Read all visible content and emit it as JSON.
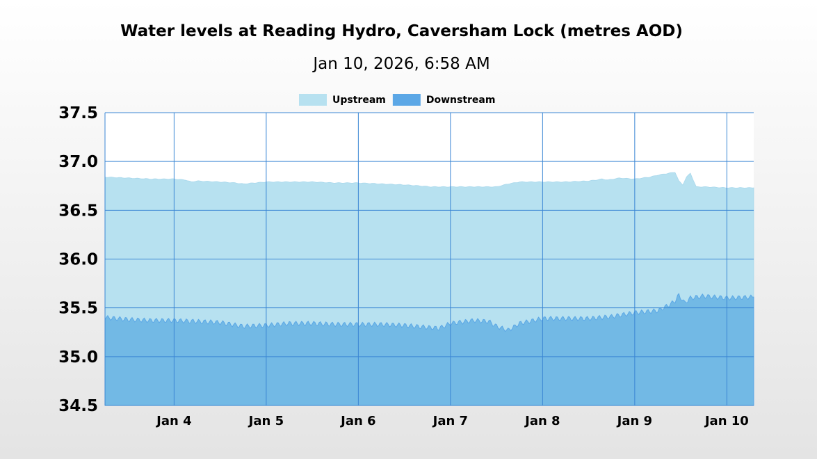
{
  "chart_data": {
    "type": "area",
    "title": "Water levels at Reading Hydro, Caversham Lock (metres AOD)",
    "subtitle": "Jan 10, 2026, 6:58 AM",
    "xlabel": "",
    "ylabel": "",
    "x_range": [
      "2026-01-03T06:00",
      "2026-01-10T07:00"
    ],
    "ylim": [
      34.5,
      37.5
    ],
    "y_ticks": [
      "37.5",
      "37.0",
      "36.5",
      "36.0",
      "35.5",
      "35.0",
      "34.5"
    ],
    "x_ticks": [
      {
        "label": "Jan 4",
        "date": "2026-01-04"
      },
      {
        "label": "Jan 5",
        "date": "2026-01-05"
      },
      {
        "label": "Jan 6",
        "date": "2026-01-06"
      },
      {
        "label": "Jan 7",
        "date": "2026-01-07"
      },
      {
        "label": "Jan 8",
        "date": "2026-01-08"
      },
      {
        "label": "Jan 9",
        "date": "2026-01-09"
      },
      {
        "label": "Jan 10",
        "date": "2026-01-10"
      }
    ],
    "grid": true,
    "legend": "top-center",
    "series": [
      {
        "name": "Upstream",
        "color": "#b7e1f0",
        "points": [
          [
            "2026-01-03T06:00",
            36.84
          ],
          [
            "2026-01-03T12:00",
            36.83
          ],
          [
            "2026-01-03T18:00",
            36.82
          ],
          [
            "2026-01-04T00:00",
            36.82
          ],
          [
            "2026-01-04T03:00",
            36.81
          ],
          [
            "2026-01-04T04:30",
            36.79
          ],
          [
            "2026-01-04T06:00",
            36.8
          ],
          [
            "2026-01-04T12:00",
            36.79
          ],
          [
            "2026-01-04T16:00",
            36.78
          ],
          [
            "2026-01-04T18:00",
            36.77
          ],
          [
            "2026-01-04T21:00",
            36.78
          ],
          [
            "2026-01-05T00:00",
            36.79
          ],
          [
            "2026-01-05T06:00",
            36.79
          ],
          [
            "2026-01-05T12:00",
            36.79
          ],
          [
            "2026-01-05T18:00",
            36.78
          ],
          [
            "2026-01-06T00:00",
            36.78
          ],
          [
            "2026-01-06T06:00",
            36.77
          ],
          [
            "2026-01-06T12:00",
            36.76
          ],
          [
            "2026-01-06T16:00",
            36.75
          ],
          [
            "2026-01-06T19:00",
            36.74
          ],
          [
            "2026-01-07T00:00",
            36.74
          ],
          [
            "2026-01-07T06:00",
            36.74
          ],
          [
            "2026-01-07T12:00",
            36.74
          ],
          [
            "2026-01-07T15:00",
            36.77
          ],
          [
            "2026-01-07T18:00",
            36.79
          ],
          [
            "2026-01-08T00:00",
            36.79
          ],
          [
            "2026-01-08T06:00",
            36.79
          ],
          [
            "2026-01-08T12:00",
            36.8
          ],
          [
            "2026-01-08T14:00",
            36.81
          ],
          [
            "2026-01-08T15:30",
            36.82
          ],
          [
            "2026-01-08T17:00",
            36.81
          ],
          [
            "2026-01-08T20:00",
            36.83
          ],
          [
            "2026-01-09T00:00",
            36.82
          ],
          [
            "2026-01-09T04:00",
            36.84
          ],
          [
            "2026-01-09T06:00",
            36.86
          ],
          [
            "2026-01-09T09:00",
            36.88
          ],
          [
            "2026-01-09T10:30",
            36.89
          ],
          [
            "2026-01-09T11:30",
            36.8
          ],
          [
            "2026-01-09T12:30",
            36.76
          ],
          [
            "2026-01-09T13:30",
            36.84
          ],
          [
            "2026-01-09T14:30",
            36.88
          ],
          [
            "2026-01-09T16:00",
            36.74
          ],
          [
            "2026-01-09T18:00",
            36.74
          ],
          [
            "2026-01-10T00:00",
            36.73
          ],
          [
            "2026-01-10T07:00",
            36.73
          ]
        ]
      },
      {
        "name": "Downstream",
        "color": "#5ba7e6",
        "points": [
          [
            "2026-01-03T06:00",
            35.4
          ],
          [
            "2026-01-03T12:00",
            35.38
          ],
          [
            "2026-01-03T18:00",
            35.37
          ],
          [
            "2026-01-04T00:00",
            35.37
          ],
          [
            "2026-01-04T06:00",
            35.36
          ],
          [
            "2026-01-04T12:00",
            35.35
          ],
          [
            "2026-01-04T18:00",
            35.31
          ],
          [
            "2026-01-05T00:00",
            35.32
          ],
          [
            "2026-01-05T06:00",
            35.34
          ],
          [
            "2026-01-05T12:00",
            35.34
          ],
          [
            "2026-01-05T18:00",
            35.33
          ],
          [
            "2026-01-06T00:00",
            35.33
          ],
          [
            "2026-01-06T06:00",
            35.33
          ],
          [
            "2026-01-06T12:00",
            35.32
          ],
          [
            "2026-01-06T18:00",
            35.3
          ],
          [
            "2026-01-06T21:00",
            35.29
          ],
          [
            "2026-01-07T00:00",
            35.34
          ],
          [
            "2026-01-07T06:00",
            35.37
          ],
          [
            "2026-01-07T10:00",
            35.36
          ],
          [
            "2026-01-07T12:00",
            35.31
          ],
          [
            "2026-01-07T15:00",
            35.27
          ],
          [
            "2026-01-07T18:00",
            35.34
          ],
          [
            "2026-01-08T00:00",
            35.39
          ],
          [
            "2026-01-08T06:00",
            35.39
          ],
          [
            "2026-01-08T12:00",
            35.39
          ],
          [
            "2026-01-08T18:00",
            35.41
          ],
          [
            "2026-01-09T00:00",
            35.45
          ],
          [
            "2026-01-09T06:00",
            35.47
          ],
          [
            "2026-01-09T09:00",
            35.53
          ],
          [
            "2026-01-09T10:30",
            35.57
          ],
          [
            "2026-01-09T11:30",
            35.63
          ],
          [
            "2026-01-09T13:00",
            35.55
          ],
          [
            "2026-01-09T14:30",
            35.6
          ],
          [
            "2026-01-09T18:00",
            35.62
          ],
          [
            "2026-01-10T00:00",
            35.6
          ],
          [
            "2026-01-10T07:00",
            35.61
          ]
        ]
      }
    ]
  }
}
